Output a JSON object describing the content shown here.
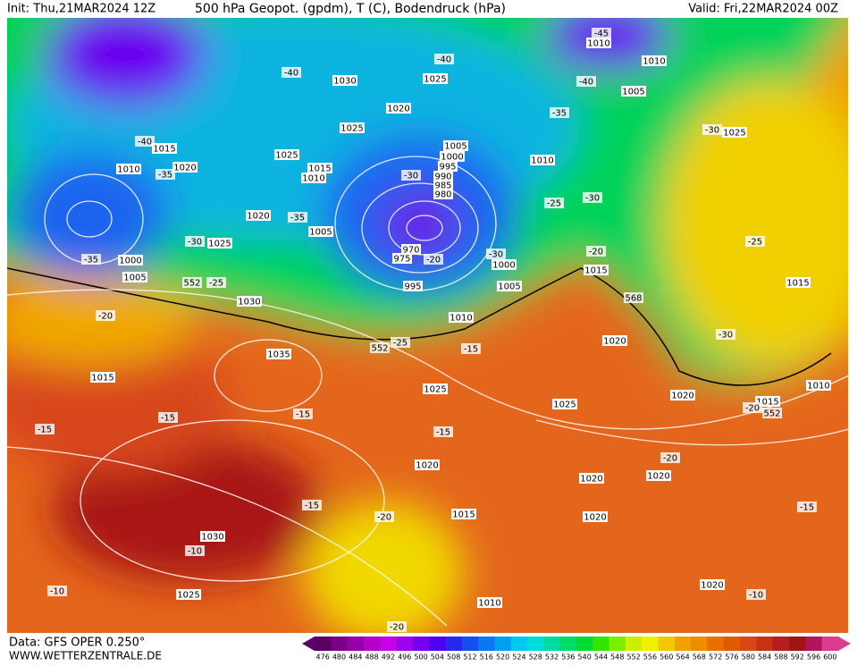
{
  "header": {
    "init": "Init: Thu,21MAR2024 12Z",
    "title": "500 hPa Geopot. (gpdm), T (C), Bodendruck (hPa)",
    "valid": "Valid: Fri,22MAR2024 00Z"
  },
  "footer": {
    "source": "Data: GFS OPER 0.250°",
    "website": "WWW.WETTERZENTRALE.DE"
  },
  "colorbar": {
    "values": [
      476,
      480,
      484,
      488,
      492,
      496,
      500,
      504,
      508,
      512,
      516,
      520,
      524,
      528,
      532,
      536,
      540,
      544,
      548,
      552,
      556,
      560,
      564,
      568,
      572,
      576,
      580,
      584,
      588,
      592,
      596,
      600
    ],
    "colors": [
      "#5a0064",
      "#7a0088",
      "#9600aa",
      "#b400c8",
      "#c800e6",
      "#a000f0",
      "#7800f0",
      "#5000f0",
      "#2828f0",
      "#1450f0",
      "#0a78f0",
      "#00a0f0",
      "#00c8f0",
      "#00dcdc",
      "#00dca0",
      "#00dc64",
      "#00dc32",
      "#32e600",
      "#78f000",
      "#c8f000",
      "#f0f000",
      "#f0c800",
      "#f0a000",
      "#f08c00",
      "#e87000",
      "#e05a00",
      "#d84814",
      "#c83214",
      "#b41e1e",
      "#a01414",
      "#b4145a",
      "#dc3c8c"
    ]
  },
  "map": {
    "isobar_labels": [
      "1010",
      "1030",
      "1025",
      "1010",
      "1005",
      "1020",
      "1025",
      "1015",
      "1020",
      "1010",
      "1025",
      "1015",
      "1010",
      "1005",
      "1000",
      "995",
      "990",
      "985",
      "980",
      "1010",
      "1025",
      "1020",
      "1005",
      "1025",
      "1000",
      "1005",
      "970",
      "975",
      "995",
      "1000",
      "1005",
      "1015",
      "1030",
      "1010",
      "1020",
      "1035",
      "1015",
      "1025",
      "1025",
      "1020",
      "1015",
      "1010",
      "1015",
      "1020",
      "1020",
      "1020",
      "1015",
      "1020",
      "1030",
      "1025",
      "1010",
      "1020"
    ],
    "temperature_labels": [
      "-45",
      "-40",
      "-40",
      "-40",
      "-35",
      "-30",
      "-40",
      "-35",
      "-30",
      "-30",
      "-25",
      "-35",
      "-30",
      "-20",
      "-30",
      "-20",
      "-35",
      "-25",
      "-25",
      "-20",
      "-25",
      "-15",
      "-30",
      "-15",
      "-15",
      "-15",
      "-15",
      "-20",
      "-15",
      "-20",
      "-10",
      "-15",
      "-10",
      "-10",
      "-20",
      "-20"
    ],
    "geopotential_labels": [
      "552",
      "552",
      "568",
      "552"
    ]
  }
}
